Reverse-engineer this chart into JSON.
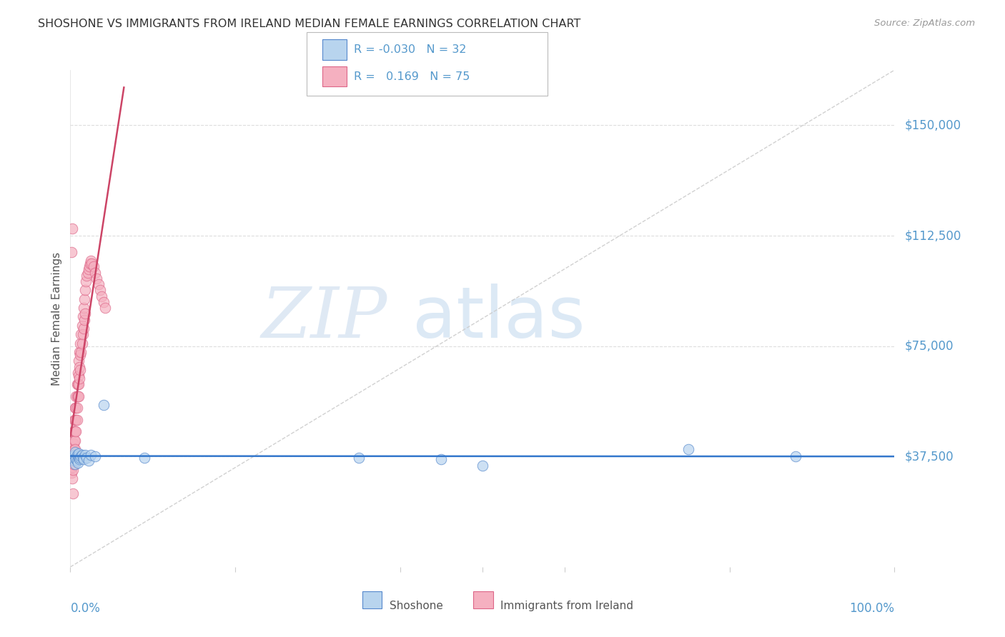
{
  "title": "SHOSHONE VS IMMIGRANTS FROM IRELAND MEDIAN FEMALE EARNINGS CORRELATION CHART",
  "source": "Source: ZipAtlas.com",
  "ylabel": "Median Female Earnings",
  "ytick_labels": [
    "$37,500",
    "$75,000",
    "$112,500",
    "$150,000"
  ],
  "ytick_values": [
    37500,
    75000,
    112500,
    150000
  ],
  "ymin": 0,
  "ymax": 168750,
  "xmin": 0.0,
  "xmax": 1.0,
  "legend_blue_label": "Shoshone",
  "legend_pink_label": "Immigrants from Ireland",
  "legend_blue_R": "-0.030",
  "legend_blue_N": "32",
  "legend_pink_R": "0.169",
  "legend_pink_N": "75",
  "blue_scatter_color": "#b8d4ee",
  "blue_edge_color": "#5588cc",
  "pink_scatter_color": "#f5b0c0",
  "pink_edge_color": "#dd6688",
  "blue_line_color": "#3377cc",
  "pink_line_color": "#cc4466",
  "axis_label_color": "#5599cc",
  "title_color": "#333333",
  "grid_color": "#dddddd",
  "shoshone_x": [
    0.003,
    0.004,
    0.005,
    0.005,
    0.006,
    0.006,
    0.007,
    0.007,
    0.008,
    0.008,
    0.009,
    0.009,
    0.01,
    0.01,
    0.011,
    0.012,
    0.013,
    0.014,
    0.015,
    0.016,
    0.018,
    0.02,
    0.022,
    0.025,
    0.03,
    0.04,
    0.09,
    0.35,
    0.45,
    0.5,
    0.75,
    0.88
  ],
  "shoshone_y": [
    37000,
    37500,
    36000,
    38000,
    35000,
    39000,
    37000,
    36500,
    38000,
    36000,
    37500,
    35500,
    37000,
    38500,
    36500,
    37000,
    37500,
    38000,
    37000,
    36500,
    38000,
    37000,
    36000,
    38000,
    37500,
    55000,
    37000,
    37000,
    36500,
    34500,
    40000,
    37500
  ],
  "ireland_x": [
    0.001,
    0.001,
    0.002,
    0.002,
    0.002,
    0.003,
    0.003,
    0.003,
    0.003,
    0.004,
    0.004,
    0.004,
    0.004,
    0.005,
    0.005,
    0.005,
    0.005,
    0.005,
    0.006,
    0.006,
    0.006,
    0.006,
    0.006,
    0.007,
    0.007,
    0.007,
    0.007,
    0.008,
    0.008,
    0.008,
    0.008,
    0.009,
    0.009,
    0.009,
    0.01,
    0.01,
    0.01,
    0.01,
    0.011,
    0.011,
    0.011,
    0.012,
    0.012,
    0.012,
    0.013,
    0.013,
    0.014,
    0.014,
    0.015,
    0.015,
    0.016,
    0.016,
    0.017,
    0.017,
    0.018,
    0.018,
    0.019,
    0.02,
    0.021,
    0.022,
    0.023,
    0.024,
    0.025,
    0.026,
    0.028,
    0.03,
    0.032,
    0.034,
    0.036,
    0.038,
    0.04,
    0.042,
    0.001,
    0.002,
    0.003
  ],
  "ireland_y": [
    35000,
    32000,
    38000,
    34000,
    30000,
    42000,
    38000,
    36000,
    33000,
    46000,
    42000,
    38000,
    35000,
    50000,
    46000,
    43000,
    40000,
    37000,
    54000,
    50000,
    46000,
    43000,
    40000,
    58000,
    54000,
    50000,
    46000,
    62000,
    58000,
    54000,
    50000,
    66000,
    62000,
    58000,
    70000,
    65000,
    62000,
    58000,
    73000,
    68000,
    64000,
    76000,
    72000,
    67000,
    79000,
    73000,
    82000,
    76000,
    85000,
    79000,
    88000,
    81000,
    91000,
    84000,
    94000,
    86000,
    97000,
    99000,
    100000,
    101000,
    102000,
    103000,
    104000,
    103000,
    102000,
    100000,
    98000,
    96000,
    94000,
    92000,
    90000,
    88000,
    107000,
    115000,
    25000
  ]
}
